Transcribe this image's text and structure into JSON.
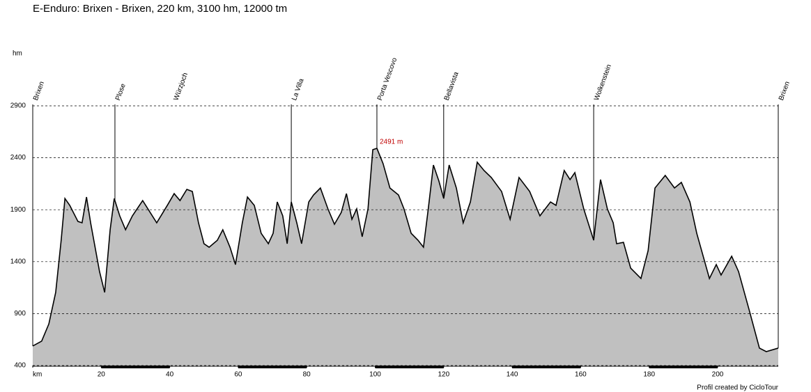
{
  "chart_data": {
    "type": "area",
    "title": "E-Enduro: Brixen - Brixen, 220 km, 3100 hm, 12000 tm",
    "y_label": "hm",
    "footer": "Profil created by CicloTour",
    "color": "#c0c0c0",
    "line_color": "#000000",
    "peak": {
      "km": 100.5,
      "label": "2491 m"
    },
    "xlim": [
      0,
      217.7
    ],
    "xticks": [
      {
        "value": 0,
        "label": "km"
      },
      20,
      40,
      60,
      80,
      100,
      120,
      140,
      160,
      180,
      200
    ],
    "ylim": [
      400,
      2900
    ],
    "yticks": [
      400,
      900,
      1400,
      1900,
      2400,
      2900
    ],
    "grid": true,
    "passes": [
      {
        "name": "Brixen",
        "km": 0,
        "line": true
      },
      {
        "name": "Plose",
        "km": 24,
        "line": true
      },
      {
        "name": "Würzjoch",
        "km": 41,
        "line": false
      },
      {
        "name": "La Villa",
        "km": 75.5,
        "line": true
      },
      {
        "name": "Porta Vescovo",
        "km": 100.5,
        "line": true
      },
      {
        "name": "Bellavista",
        "km": 120,
        "line": true
      },
      {
        "name": "Wolkenstein",
        "km": 163.8,
        "line": true
      },
      {
        "name": "Brixen",
        "km": 217.7,
        "line": true
      }
    ],
    "x": [
      0,
      2.6,
      4.7,
      6.7,
      8.3,
      9.4,
      10.8,
      13.2,
      14.4,
      15.7,
      16.9,
      19.5,
      21,
      22.6,
      23.8,
      25.4,
      27.1,
      29.1,
      32.1,
      36.2,
      39.3,
      41.3,
      43,
      45,
      46.6,
      48.4,
      50,
      51.5,
      53.9,
      55.5,
      57.6,
      59.2,
      61.2,
      62.7,
      64.7,
      66.7,
      68.8,
      70.2,
      71.4,
      73,
      74.3,
      75.5,
      77.1,
      78.5,
      80.6,
      82,
      84,
      86.2,
      88.1,
      90.1,
      91.6,
      93.2,
      94.6,
      96.2,
      97.9,
      99.3,
      100.5,
      102.3,
      104.3,
      106.8,
      108.4,
      110.5,
      112.5,
      114.1,
      115.5,
      117,
      118.6,
      120,
      121.6,
      123.7,
      125.7,
      127.8,
      129.8,
      131.8,
      133.9,
      136.9,
      139.4,
      142,
      145.1,
      148.1,
      151.2,
      152.8,
      155.2,
      156.9,
      158.3,
      160.9,
      163.8,
      165.8,
      167.8,
      169.5,
      170.5,
      172.5,
      174.6,
      177.6,
      179.7,
      181.7,
      184.7,
      187.4,
      189.4,
      191.9,
      193.9,
      197.6,
      199.6,
      201,
      204.1,
      206.1,
      209.2,
      212.2,
      214.2,
      217.7
    ],
    "values": [
      588,
      635,
      800,
      1104,
      1606,
      2008,
      1942,
      1787,
      1774,
      2022,
      1774,
      1305,
      1104,
      1707,
      2008,
      1841,
      1707,
      1841,
      1988,
      1774,
      1942,
      2055,
      1988,
      2096,
      2076,
      1774,
      1573,
      1539,
      1606,
      1707,
      1539,
      1372,
      1774,
      2022,
      1942,
      1673,
      1573,
      1673,
      1975,
      1841,
      1573,
      1975,
      1774,
      1573,
      1975,
      2042,
      2109,
      1908,
      1760,
      1874,
      2055,
      1808,
      1908,
      1640,
      1908,
      2478,
      2491,
      2344,
      2109,
      2042,
      1908,
      1673,
      1606,
      1539,
      1908,
      2330,
      2176,
      2008,
      2330,
      2109,
      1774,
      1975,
      2357,
      2277,
      2210,
      2076,
      1808,
      2210,
      2076,
      1841,
      1975,
      1942,
      2277,
      2190,
      2257,
      1908,
      1606,
      2190,
      1908,
      1774,
      1573,
      1586,
      1338,
      1238,
      1506,
      2109,
      2230,
      2109,
      2163,
      1975,
      1673,
      1238,
      1372,
      1271,
      1452,
      1305,
      936,
      568,
      534,
      568
    ]
  }
}
